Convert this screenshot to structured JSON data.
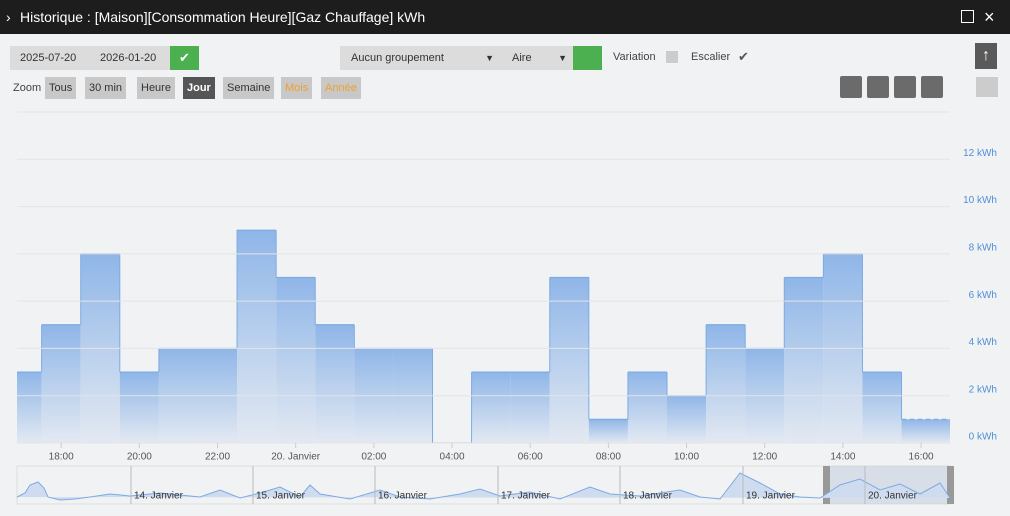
{
  "window": {
    "title": "Historique : [Maison][Consommation Heure][Gaz Chauffage] kWh"
  },
  "toolbar": {
    "date_start": "2025-07-20",
    "date_end": "2026-01-20",
    "grouping": "Aucun groupement",
    "chart_style": "Aire",
    "variation": "Variation",
    "stairs": "Escalier",
    "zoom": "Zoom",
    "zoom_buttons": [
      "Tous",
      "30 min",
      "Heure",
      "Jour",
      "Semaine",
      "Mois",
      "Année"
    ]
  },
  "chart_data": {
    "type": "step-area",
    "x": [
      17,
      18,
      19,
      20,
      21,
      22,
      23,
      24,
      25,
      26,
      27,
      28,
      29,
      30,
      31,
      32,
      33,
      34,
      35,
      36,
      37,
      38,
      39,
      40
    ],
    "series": [
      {
        "name": "Gaz Chauffage",
        "color": "#7caae4",
        "values": [
          3,
          5,
          8,
          3,
          4,
          4,
          9,
          7,
          5,
          4,
          4,
          0,
          3,
          3,
          7,
          1,
          3,
          2,
          5,
          4,
          7,
          8,
          3,
          1
        ]
      }
    ],
    "xlim": [
      16.87,
      40.74
    ],
    "xticks": [
      {
        "value": 18,
        "label": "18:00"
      },
      {
        "value": 20,
        "label": "20:00"
      },
      {
        "value": 22,
        "label": "22:00"
      },
      {
        "value": 24,
        "label": "20. Janvier"
      },
      {
        "value": 26,
        "label": "02:00"
      },
      {
        "value": 28,
        "label": "04:00"
      },
      {
        "value": 30,
        "label": "06:00"
      },
      {
        "value": 32,
        "label": "08:00"
      },
      {
        "value": 34,
        "label": "10:00"
      },
      {
        "value": 36,
        "label": "12:00"
      },
      {
        "value": 38,
        "label": "14:00"
      },
      {
        "value": 40,
        "label": "16:00"
      }
    ],
    "ylim": [
      0,
      14
    ],
    "yticks": [
      {
        "value": 0,
        "label": "0 kWh"
      },
      {
        "value": 2,
        "label": "2 kWh"
      },
      {
        "value": 4,
        "label": "4 kWh"
      },
      {
        "value": 6,
        "label": "6 kWh"
      },
      {
        "value": 8,
        "label": "8 kWh"
      },
      {
        "value": 10,
        "label": "10 kWh"
      },
      {
        "value": 12,
        "label": "12 kWh"
      }
    ],
    "grid": true,
    "navigator_labels": [
      "14. Janvier",
      "15. Janvier",
      "16. Janvier",
      "17. Janvier",
      "18. Janvier",
      "19. Janvier",
      "20. Janvier"
    ]
  }
}
